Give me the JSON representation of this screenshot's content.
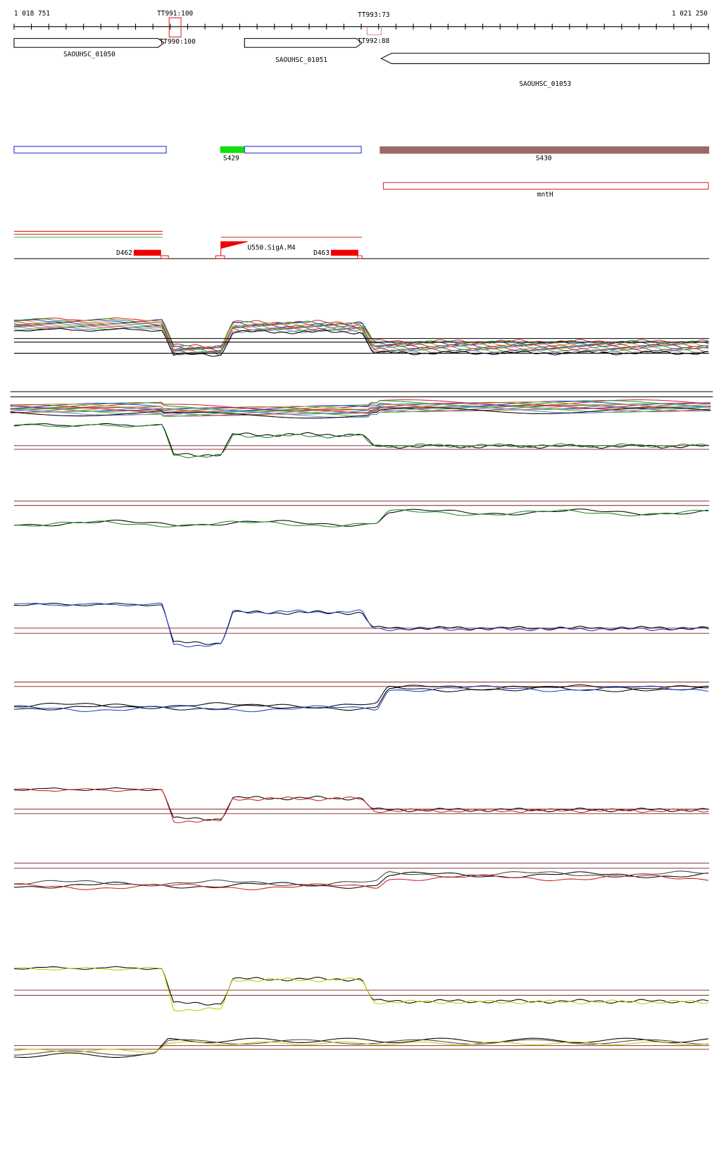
{
  "ruler": {
    "start": "1 018 751",
    "end": "1 021 250"
  },
  "terminators": [
    "TT991:100",
    "TT993:73",
    "TT990:100",
    "TT992:88"
  ],
  "genes": [
    "SAOUHSC_01050",
    "SAOUHSC_01051",
    "SAOUHSC_01053"
  ],
  "segments": [
    "S429",
    "S430"
  ],
  "annotations": [
    "mntH"
  ],
  "features": [
    "D462",
    "U550.SigA.M4",
    "D463"
  ]
}
